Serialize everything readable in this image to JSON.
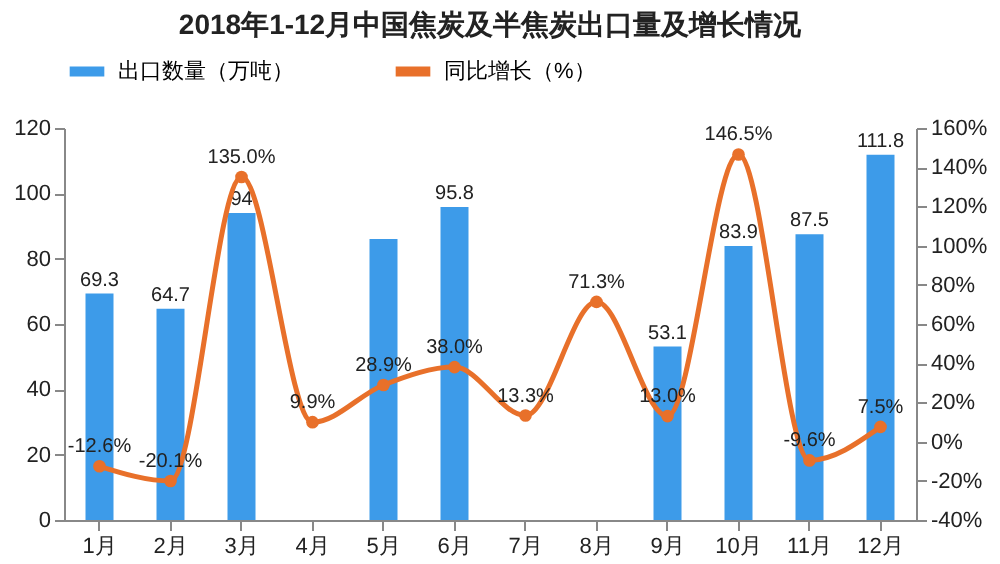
{
  "chart_data": {
    "type": "bar",
    "title": "2018年1-12月中国焦炭及半焦炭出口量及增长情况",
    "categories": [
      "1月",
      "2月",
      "3月",
      "4月",
      "5月",
      "6月",
      "7月",
      "8月",
      "9月",
      "10月",
      "11月",
      "12月"
    ],
    "series": [
      {
        "name": "出口数量（万吨）",
        "color": "#3d9be9",
        "values": [
          69.3,
          64.7,
          94,
          null,
          86,
          95.8,
          null,
          null,
          53.1,
          83.9,
          87.5,
          111.8
        ],
        "value_labels": [
          "69.3",
          "64.7",
          "94",
          null,
          null,
          "95.8",
          null,
          null,
          "53.1",
          "83.9",
          "87.5",
          "111.8"
        ]
      },
      {
        "name": "同比增长（%）",
        "type": "line",
        "axis": "y2",
        "color": "#e8702a",
        "values": [
          -12.6,
          -20.1,
          135.0,
          9.9,
          28.9,
          38.0,
          13.3,
          71.3,
          13.0,
          146.5,
          -9.6,
          7.5
        ],
        "value_labels": [
          "-12.6%",
          "-20.1%",
          "135.0%",
          "9.9%",
          "28.9%",
          "38.0%",
          "13.3%",
          "71.3%",
          "13.0%",
          "146.5%",
          "-9.6%",
          "7.5%"
        ]
      }
    ],
    "ylim": [
      0,
      120
    ],
    "yticks": [
      0,
      20,
      40,
      60,
      80,
      100,
      120
    ],
    "y2lim": [
      -40,
      160
    ],
    "y2ticks": [
      {
        "value": -40,
        "label": "-40%"
      },
      {
        "value": -20,
        "label": "-20%"
      },
      {
        "value": 0,
        "label": "0%"
      },
      {
        "value": 20,
        "label": "20%"
      },
      {
        "value": 40,
        "label": "40%"
      },
      {
        "value": 60,
        "label": "60%"
      },
      {
        "value": 80,
        "label": "80%"
      },
      {
        "value": 100,
        "label": "100%"
      },
      {
        "value": 120,
        "label": "120%"
      },
      {
        "value": 140,
        "label": "140%"
      },
      {
        "value": 160,
        "label": "160%"
      }
    ],
    "legend": "top",
    "grid": false,
    "marker": "circle"
  }
}
